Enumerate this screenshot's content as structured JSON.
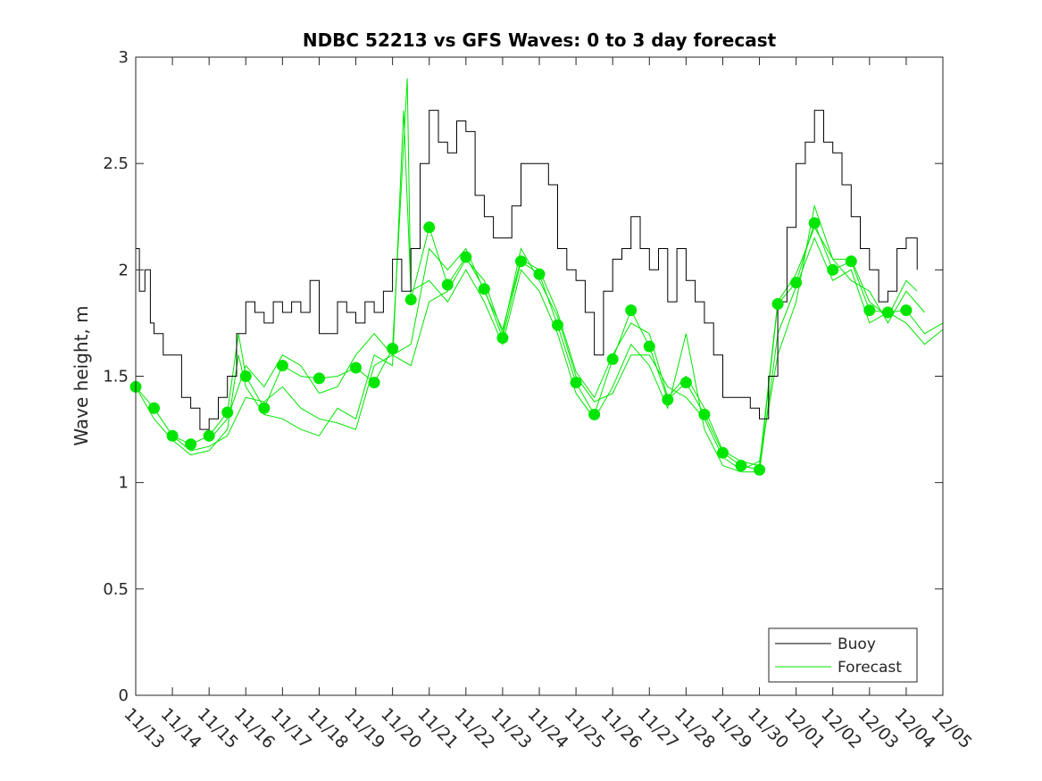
{
  "chart_data": {
    "type": "line",
    "title": "NDBC 52213 vs GFS Waves: 0 to 3 day forecast",
    "xlabel": "",
    "ylabel": "Wave height, m",
    "xlim": [
      0,
      22
    ],
    "ylim": [
      0,
      3
    ],
    "x_unit": "days since 11/13",
    "x_tick_labels": [
      "11/13",
      "11/14",
      "11/15",
      "11/16",
      "11/17",
      "11/18",
      "11/19",
      "11/20",
      "11/21",
      "11/22",
      "11/23",
      "11/24",
      "11/25",
      "11/26",
      "11/27",
      "11/28",
      "11/29",
      "11/30",
      "12/01",
      "12/02",
      "12/03",
      "12/04",
      "12/05"
    ],
    "y_ticks": [
      0,
      0.5,
      1,
      1.5,
      2,
      2.5,
      3
    ],
    "y_tick_labels": [
      "0",
      "0.5",
      "1",
      "1.5",
      "2",
      "2.5",
      "3"
    ],
    "grid": false,
    "legend": {
      "position": "bottom-right",
      "entries": [
        "Buoy",
        "Forecast"
      ]
    },
    "colors": {
      "buoy": "#000000",
      "forecast": "#00e600",
      "marker": "#00e600"
    },
    "buoy": [
      [
        0,
        2.1
      ],
      [
        0.1,
        1.9
      ],
      [
        0.25,
        2.0
      ],
      [
        0.4,
        1.75
      ],
      [
        0.5,
        1.7
      ],
      [
        0.75,
        1.6
      ],
      [
        1,
        1.6
      ],
      [
        1.25,
        1.4
      ],
      [
        1.5,
        1.35
      ],
      [
        1.75,
        1.25
      ],
      [
        2,
        1.3
      ],
      [
        2.25,
        1.4
      ],
      [
        2.5,
        1.5
      ],
      [
        2.75,
        1.7
      ],
      [
        3,
        1.85
      ],
      [
        3.25,
        1.8
      ],
      [
        3.5,
        1.75
      ],
      [
        3.75,
        1.85
      ],
      [
        4,
        1.8
      ],
      [
        4.25,
        1.85
      ],
      [
        4.5,
        1.8
      ],
      [
        4.75,
        1.95
      ],
      [
        5,
        1.7
      ],
      [
        5.25,
        1.7
      ],
      [
        5.5,
        1.85
      ],
      [
        5.75,
        1.8
      ],
      [
        6,
        1.75
      ],
      [
        6.25,
        1.85
      ],
      [
        6.5,
        1.8
      ],
      [
        6.75,
        1.9
      ],
      [
        7,
        2.05
      ],
      [
        7.25,
        1.9
      ],
      [
        7.5,
        2.1
      ],
      [
        7.75,
        2.5
      ],
      [
        8,
        2.75
      ],
      [
        8.25,
        2.6
      ],
      [
        8.5,
        2.55
      ],
      [
        8.75,
        2.7
      ],
      [
        9,
        2.65
      ],
      [
        9.25,
        2.35
      ],
      [
        9.5,
        2.25
      ],
      [
        9.75,
        2.15
      ],
      [
        10,
        2.15
      ],
      [
        10.25,
        2.3
      ],
      [
        10.5,
        2.5
      ],
      [
        10.75,
        2.5
      ],
      [
        11,
        2.5
      ],
      [
        11.25,
        2.4
      ],
      [
        11.5,
        2.1
      ],
      [
        11.75,
        2.0
      ],
      [
        12,
        1.95
      ],
      [
        12.25,
        1.8
      ],
      [
        12.5,
        1.6
      ],
      [
        12.75,
        1.9
      ],
      [
        13,
        2.05
      ],
      [
        13.25,
        2.1
      ],
      [
        13.5,
        2.25
      ],
      [
        13.75,
        2.1
      ],
      [
        14,
        2.0
      ],
      [
        14.25,
        2.1
      ],
      [
        14.5,
        1.85
      ],
      [
        14.75,
        2.1
      ],
      [
        15,
        1.95
      ],
      [
        15.25,
        1.85
      ],
      [
        15.5,
        1.75
      ],
      [
        15.75,
        1.6
      ],
      [
        16,
        1.4
      ],
      [
        16.25,
        1.4
      ],
      [
        16.5,
        1.4
      ],
      [
        16.75,
        1.35
      ],
      [
        17,
        1.3
      ],
      [
        17.25,
        1.5
      ],
      [
        17.5,
        1.85
      ],
      [
        17.75,
        2.2
      ],
      [
        18,
        2.5
      ],
      [
        18.25,
        2.6
      ],
      [
        18.5,
        2.75
      ],
      [
        18.75,
        2.6
      ],
      [
        19,
        2.55
      ],
      [
        19.25,
        2.4
      ],
      [
        19.5,
        2.25
      ],
      [
        19.75,
        2.1
      ],
      [
        20,
        2.0
      ],
      [
        20.25,
        1.85
      ],
      [
        20.5,
        1.9
      ],
      [
        20.75,
        2.1
      ],
      [
        21,
        2.15
      ],
      [
        21.3,
        2.0
      ]
    ],
    "forecast_series": [
      [
        [
          0,
          1.45
        ],
        [
          0.5,
          1.35
        ],
        [
          1,
          1.22
        ],
        [
          1.5,
          1.18
        ],
        [
          2,
          1.22
        ],
        [
          2.5,
          1.33
        ],
        [
          2.8,
          1.7
        ],
        [
          3,
          1.5
        ],
        [
          3.5,
          1.35
        ],
        [
          4,
          1.55
        ],
        [
          4.5,
          1.5
        ],
        [
          5,
          1.49
        ],
        [
          5.5,
          1.5
        ],
        [
          6,
          1.54
        ],
        [
          6.5,
          1.47
        ],
        [
          7,
          1.63
        ],
        [
          7.4,
          2.9
        ],
        [
          7.5,
          1.86
        ],
        [
          8,
          2.2
        ],
        [
          8.5,
          1.93
        ],
        [
          9,
          2.06
        ],
        [
          9.5,
          1.91
        ],
        [
          10,
          1.68
        ],
        [
          10.5,
          2.04
        ],
        [
          11,
          1.98
        ],
        [
          11.5,
          1.74
        ],
        [
          12,
          1.47
        ],
        [
          12.5,
          1.32
        ],
        [
          13,
          1.58
        ],
        [
          13.5,
          1.81
        ],
        [
          14,
          1.64
        ],
        [
          14.5,
          1.39
        ],
        [
          15,
          1.47
        ],
        [
          15.5,
          1.32
        ],
        [
          16,
          1.14
        ],
        [
          16.5,
          1.08
        ],
        [
          17,
          1.06
        ],
        [
          17.5,
          1.84
        ],
        [
          18,
          1.94
        ],
        [
          18.5,
          2.22
        ],
        [
          19,
          2.0
        ],
        [
          19.5,
          2.04
        ],
        [
          20,
          1.81
        ],
        [
          20.5,
          1.8
        ],
        [
          21,
          1.81
        ],
        [
          21.5,
          1.7
        ],
        [
          22,
          1.75
        ]
      ],
      [
        [
          0,
          1.45
        ],
        [
          0.5,
          1.3
        ],
        [
          1,
          1.2
        ],
        [
          1.5,
          1.13
        ],
        [
          2,
          1.15
        ],
        [
          2.5,
          1.25
        ],
        [
          2.8,
          1.6
        ],
        [
          3,
          1.45
        ],
        [
          3.5,
          1.32
        ],
        [
          4,
          1.3
        ],
        [
          4.5,
          1.25
        ],
        [
          5,
          1.22
        ],
        [
          5.5,
          1.35
        ],
        [
          6,
          1.3
        ],
        [
          6.5,
          1.6
        ],
        [
          7,
          1.55
        ],
        [
          7.3,
          2.75
        ],
        [
          7.5,
          1.9
        ],
        [
          8,
          1.95
        ],
        [
          8.5,
          1.85
        ],
        [
          9,
          2.0
        ],
        [
          9.5,
          1.85
        ],
        [
          10,
          1.65
        ],
        [
          10.5,
          2.0
        ],
        [
          11,
          1.9
        ],
        [
          11.5,
          1.7
        ],
        [
          12,
          1.42
        ],
        [
          12.5,
          1.3
        ],
        [
          13,
          1.45
        ],
        [
          13.5,
          1.65
        ],
        [
          14,
          1.55
        ],
        [
          14.5,
          1.35
        ],
        [
          15,
          1.7
        ],
        [
          15.5,
          1.25
        ],
        [
          16,
          1.08
        ],
        [
          16.5,
          1.05
        ],
        [
          17,
          1.05
        ],
        [
          17.5,
          1.7
        ],
        [
          18,
          1.92
        ],
        [
          18.5,
          2.15
        ],
        [
          19,
          1.95
        ],
        [
          19.5,
          2.0
        ],
        [
          20,
          1.75
        ],
        [
          20.5,
          1.8
        ],
        [
          21,
          1.75
        ],
        [
          21.5,
          1.65
        ],
        [
          22,
          1.72
        ]
      ],
      [
        [
          1,
          1.22
        ],
        [
          1.5,
          1.15
        ],
        [
          2,
          1.17
        ],
        [
          2.5,
          1.22
        ],
        [
          3,
          1.4
        ],
        [
          3.5,
          1.38
        ],
        [
          4,
          1.45
        ],
        [
          4.5,
          1.35
        ],
        [
          5,
          1.3
        ],
        [
          5.5,
          1.28
        ],
        [
          6,
          1.25
        ],
        [
          6.5,
          1.55
        ],
        [
          7,
          1.6
        ],
        [
          7.5,
          1.55
        ],
        [
          8,
          1.85
        ],
        [
          8.5,
          1.9
        ],
        [
          9,
          2.05
        ],
        [
          9.5,
          1.95
        ],
        [
          10,
          1.7
        ],
        [
          10.5,
          2.1
        ],
        [
          11,
          1.95
        ],
        [
          11.5,
          1.78
        ],
        [
          12,
          1.5
        ],
        [
          12.5,
          1.38
        ],
        [
          13,
          1.42
        ],
        [
          13.5,
          1.6
        ],
        [
          14,
          1.6
        ],
        [
          14.5,
          1.45
        ],
        [
          15,
          1.4
        ],
        [
          15.5,
          1.3
        ],
        [
          16,
          1.12
        ],
        [
          16.5,
          1.06
        ],
        [
          17,
          1.1
        ],
        [
          17.5,
          1.6
        ],
        [
          18,
          1.85
        ],
        [
          18.5,
          2.3
        ],
        [
          19,
          2.05
        ],
        [
          19.5,
          1.95
        ],
        [
          20,
          1.9
        ],
        [
          20.5,
          1.75
        ],
        [
          21,
          1.9
        ],
        [
          21.5,
          1.8
        ]
      ],
      [
        [
          2,
          1.2
        ],
        [
          2.5,
          1.3
        ],
        [
          3,
          1.55
        ],
        [
          3.5,
          1.45
        ],
        [
          4,
          1.6
        ],
        [
          4.5,
          1.55
        ],
        [
          5,
          1.42
        ],
        [
          5.5,
          1.45
        ],
        [
          6,
          1.6
        ],
        [
          6.5,
          1.7
        ],
        [
          7,
          1.6
        ],
        [
          7.5,
          1.65
        ],
        [
          8,
          2.1
        ],
        [
          8.5,
          2.0
        ],
        [
          9,
          2.1
        ],
        [
          9.5,
          1.9
        ],
        [
          10,
          1.72
        ],
        [
          10.5,
          2.05
        ],
        [
          11,
          2.0
        ],
        [
          11.5,
          1.8
        ],
        [
          12,
          1.52
        ],
        [
          12.5,
          1.4
        ],
        [
          13,
          1.6
        ],
        [
          13.5,
          1.75
        ],
        [
          14,
          1.7
        ],
        [
          14.5,
          1.4
        ],
        [
          15,
          1.5
        ],
        [
          15.5,
          1.35
        ],
        [
          16,
          1.15
        ],
        [
          16.5,
          1.1
        ],
        [
          17,
          1.08
        ],
        [
          17.5,
          1.85
        ],
        [
          18,
          1.98
        ],
        [
          18.5,
          2.2
        ],
        [
          19,
          2.05
        ],
        [
          19.5,
          2.05
        ],
        [
          20,
          1.85
        ],
        [
          20.5,
          1.78
        ],
        [
          21,
          1.95
        ],
        [
          21.3,
          1.9
        ]
      ]
    ],
    "forecast_markers": [
      [
        0,
        1.45
      ],
      [
        0.5,
        1.35
      ],
      [
        1,
        1.22
      ],
      [
        1.5,
        1.18
      ],
      [
        2,
        1.22
      ],
      [
        2.5,
        1.33
      ],
      [
        3,
        1.5
      ],
      [
        3.5,
        1.35
      ],
      [
        4,
        1.55
      ],
      [
        5,
        1.49
      ],
      [
        6,
        1.54
      ],
      [
        6.5,
        1.47
      ],
      [
        7,
        1.63
      ],
      [
        7.5,
        1.86
      ],
      [
        8,
        2.2
      ],
      [
        8.5,
        1.93
      ],
      [
        9,
        2.06
      ],
      [
        9.5,
        1.91
      ],
      [
        10,
        1.68
      ],
      [
        10.5,
        2.04
      ],
      [
        11,
        1.98
      ],
      [
        11.5,
        1.74
      ],
      [
        12,
        1.47
      ],
      [
        12.5,
        1.32
      ],
      [
        13,
        1.58
      ],
      [
        13.5,
        1.81
      ],
      [
        14,
        1.64
      ],
      [
        14.5,
        1.39
      ],
      [
        15,
        1.47
      ],
      [
        15.5,
        1.32
      ],
      [
        16,
        1.14
      ],
      [
        16.5,
        1.08
      ],
      [
        17,
        1.06
      ],
      [
        17.5,
        1.84
      ],
      [
        18,
        1.94
      ],
      [
        18.5,
        2.22
      ],
      [
        19,
        2.0
      ],
      [
        19.5,
        2.04
      ],
      [
        20,
        1.81
      ],
      [
        20.5,
        1.8
      ],
      [
        21,
        1.81
      ]
    ]
  }
}
